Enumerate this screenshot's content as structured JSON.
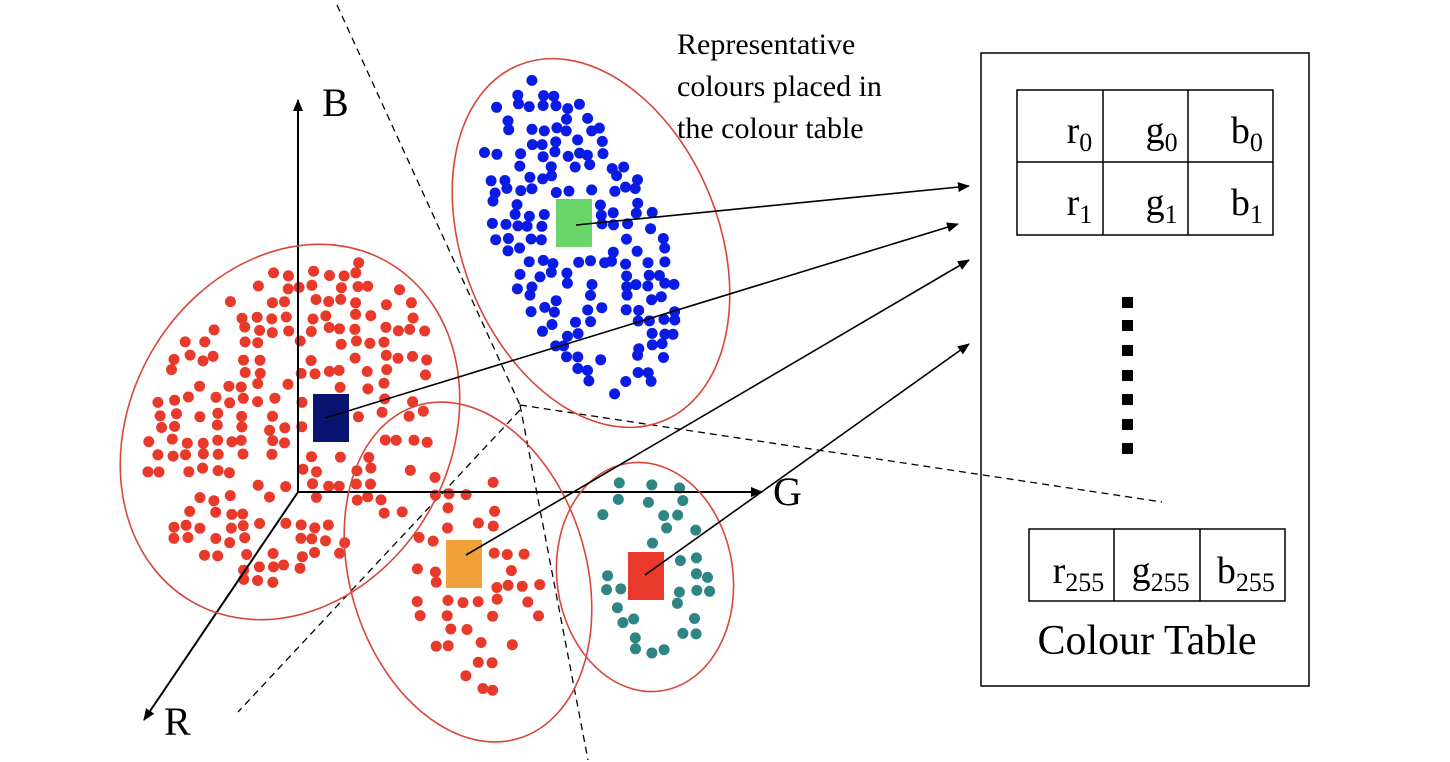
{
  "axes": {
    "b_label": "B",
    "g_label": "G",
    "r_label": "R"
  },
  "caption": {
    "lines": [
      "Representative",
      "colours placed in",
      "the colour table"
    ]
  },
  "colour_table": {
    "title": "Colour Table",
    "rows": [
      [
        {
          "base": "r",
          "sub": "0"
        },
        {
          "base": "g",
          "sub": "0"
        },
        {
          "base": "b",
          "sub": "0"
        }
      ],
      [
        {
          "base": "r",
          "sub": "1"
        },
        {
          "base": "g",
          "sub": "1"
        },
        {
          "base": "b",
          "sub": "1"
        }
      ]
    ],
    "last_row": [
      {
        "base": "r",
        "sub": "255"
      },
      {
        "base": "g",
        "sub": "255"
      },
      {
        "base": "b",
        "sub": "255"
      }
    ]
  },
  "colors": {
    "red_points": "#e8392a",
    "blue_points": "#0a1be6",
    "teal_points": "#2e8583",
    "cluster_outline": "#d9463a",
    "rep_navy": "#0b1370",
    "rep_green": "#6ad66a",
    "rep_orange": "#f0a13a",
    "rep_red": "#e8392a"
  },
  "clusters": [
    {
      "name": "red-cluster-large",
      "points": "red_points",
      "representative": "rep_navy"
    },
    {
      "name": "blue-cluster",
      "points": "blue_points",
      "representative": "rep_green"
    },
    {
      "name": "red-cluster-small",
      "points": "red_points",
      "representative": "rep_orange"
    },
    {
      "name": "teal-cluster",
      "points": "teal_points",
      "representative": "rep_red"
    }
  ]
}
